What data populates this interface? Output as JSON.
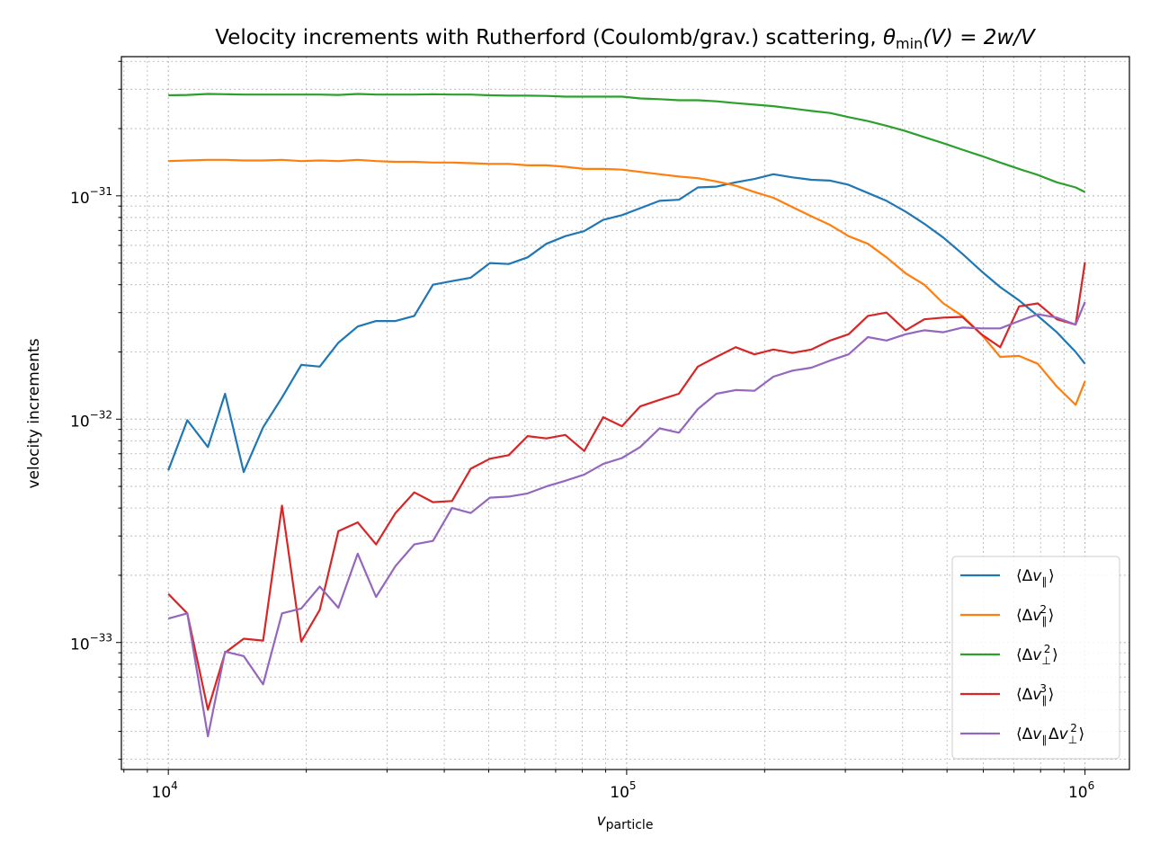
{
  "chart_data": {
    "type": "line",
    "title": "Velocity increments with Rutherford (Coulomb/grav.) scattering, θmin(V) = 2w/V",
    "title_parts": {
      "main": "Velocity increments with Rutherford (Coulomb/grav.) scattering, ",
      "theta": "θ",
      "theta_sub": "min",
      "rest": "(V) = 2w/V"
    },
    "xlabel": "v",
    "xlabel_sub": "particle",
    "ylabel": "velocity increments",
    "x_scale": "log",
    "y_scale": "log",
    "xlim": [
      7900,
      1250000
    ],
    "ylim": [
      2.7e-34,
      4.2e-31
    ],
    "grid": true,
    "legend_position": "lower-right",
    "x_ticks": [
      {
        "value": 10000,
        "base": "10",
        "exp": "4"
      },
      {
        "value": 100000,
        "base": "10",
        "exp": "5"
      },
      {
        "value": 1000000,
        "base": "10",
        "exp": "6"
      }
    ],
    "y_ticks": [
      {
        "value": 1e-33,
        "base": "10",
        "exp": "−33"
      },
      {
        "value": 1e-32,
        "base": "10",
        "exp": "−32"
      },
      {
        "value": 1e-31,
        "base": "10",
        "exp": "−31"
      }
    ],
    "x": [
      10000,
      11000,
      12200,
      13300,
      14600,
      16100,
      17700,
      19500,
      21400,
      23500,
      25900,
      28400,
      31300,
      34400,
      37800,
      41600,
      45700,
      50300,
      55300,
      60800,
      66800,
      73500,
      80800,
      88900,
      97700,
      107000,
      118000,
      130000,
      143000,
      157000,
      173000,
      190000,
      209000,
      230000,
      253000,
      278000,
      305000,
      336000,
      369000,
      406000,
      446000,
      491000,
      540000,
      594000,
      653000,
      718000,
      789000,
      868000,
      954000,
      1000000
    ],
    "series": [
      {
        "name": "⟨Δv∥⟩",
        "color": "#1f77b4",
        "values": [
          5.9e-33,
          9.9e-33,
          7.5e-33,
          1.3e-32,
          5.8e-33,
          9.2e-33,
          1.25e-32,
          1.75e-32,
          1.72e-32,
          2.2e-32,
          2.6e-32,
          2.75e-32,
          2.75e-32,
          2.9e-32,
          4e-32,
          4.15e-32,
          4.3e-32,
          5e-32,
          4.95e-32,
          5.3e-32,
          6.1e-32,
          6.6e-32,
          6.95e-32,
          7.8e-32,
          8.2e-32,
          8.8e-32,
          9.5e-32,
          9.6e-32,
          1.09e-31,
          1.1e-31,
          1.15e-31,
          1.19e-31,
          1.25e-31,
          1.21e-31,
          1.18e-31,
          1.17e-31,
          1.12e-31,
          1.03e-31,
          9.5e-32,
          8.5e-32,
          7.5e-32,
          6.5e-32,
          5.5e-32,
          4.6e-32,
          3.9e-32,
          3.4e-32,
          2.9e-32,
          2.45e-32,
          2e-32,
          1.77e-32
        ]
      },
      {
        "name": "⟨Δv∥²⟩",
        "color": "#ff7f0e",
        "values": [
          1.43e-31,
          1.44e-31,
          1.45e-31,
          1.45e-31,
          1.44e-31,
          1.44e-31,
          1.45e-31,
          1.43e-31,
          1.44e-31,
          1.43e-31,
          1.45e-31,
          1.43e-31,
          1.42e-31,
          1.42e-31,
          1.41e-31,
          1.41e-31,
          1.4e-31,
          1.39e-31,
          1.39e-31,
          1.37e-31,
          1.37e-31,
          1.35e-31,
          1.32e-31,
          1.32e-31,
          1.31e-31,
          1.28e-31,
          1.25e-31,
          1.22e-31,
          1.2e-31,
          1.16e-31,
          1.11e-31,
          1.04e-31,
          9.8e-32,
          8.9e-32,
          8.1e-32,
          7.4e-32,
          6.6e-32,
          6.1e-32,
          5.3e-32,
          4.5e-32,
          4e-32,
          3.3e-32,
          2.9e-32,
          2.4e-32,
          1.9e-32,
          1.92e-32,
          1.77e-32,
          1.4e-32,
          1.16e-32,
          1.48e-32
        ]
      },
      {
        "name": "⟨Δv⊥²⟩",
        "color": "#2ca02c",
        "values": [
          2.82e-31,
          2.83e-31,
          2.86e-31,
          2.85e-31,
          2.84e-31,
          2.84e-31,
          2.84e-31,
          2.84e-31,
          2.84e-31,
          2.83e-31,
          2.86e-31,
          2.84e-31,
          2.84e-31,
          2.84e-31,
          2.85e-31,
          2.84e-31,
          2.84e-31,
          2.82e-31,
          2.81e-31,
          2.81e-31,
          2.8e-31,
          2.78e-31,
          2.78e-31,
          2.78e-31,
          2.78e-31,
          2.73e-31,
          2.71e-31,
          2.68e-31,
          2.68e-31,
          2.65e-31,
          2.6e-31,
          2.56e-31,
          2.52e-31,
          2.46e-31,
          2.4e-31,
          2.35e-31,
          2.25e-31,
          2.16e-31,
          2.06e-31,
          1.95e-31,
          1.83e-31,
          1.72e-31,
          1.61e-31,
          1.51e-31,
          1.41e-31,
          1.32e-31,
          1.24e-31,
          1.15e-31,
          1.09e-31,
          1.04e-31
        ]
      },
      {
        "name": "⟨Δv∥³⟩",
        "color": "#d62728",
        "values": [
          1.65e-33,
          1.35e-33,
          5e-34,
          9e-34,
          1.04e-33,
          1.02e-33,
          4.1e-33,
          1.01e-33,
          1.4e-33,
          3.15e-33,
          3.45e-33,
          2.75e-33,
          3.8e-33,
          4.7e-33,
          4.25e-33,
          4.3e-33,
          6e-33,
          6.65e-33,
          6.9e-33,
          8.4e-33,
          8.2e-33,
          8.5e-33,
          7.2e-33,
          1.02e-32,
          9.3e-33,
          1.14e-32,
          1.22e-32,
          1.3e-32,
          1.72e-32,
          1.9e-32,
          2.1e-32,
          1.95e-32,
          2.05e-32,
          1.98e-32,
          2.05e-32,
          2.25e-32,
          2.4e-32,
          2.9e-32,
          3e-32,
          2.5e-32,
          2.8e-32,
          2.85e-32,
          2.87e-32,
          2.4e-32,
          2.1e-32,
          3.2e-32,
          3.3e-32,
          2.8e-32,
          2.65e-32,
          5.05e-32
        ]
      },
      {
        "name": "⟨Δv∥Δv⊥²⟩",
        "color": "#9467bd",
        "values": [
          1.28e-33,
          1.35e-33,
          3.8e-34,
          9.1e-34,
          8.7e-34,
          6.5e-34,
          1.35e-33,
          1.42e-33,
          1.78e-33,
          1.43e-33,
          2.5e-33,
          1.6e-33,
          2.2e-33,
          2.75e-33,
          2.85e-33,
          4e-33,
          3.8e-33,
          4.45e-33,
          4.5e-33,
          4.65e-33,
          5e-33,
          5.3e-33,
          5.65e-33,
          6.3e-33,
          6.7e-33,
          7.5e-33,
          9.1e-33,
          8.7e-33,
          1.11e-32,
          1.3e-32,
          1.35e-32,
          1.34e-32,
          1.55e-32,
          1.65e-32,
          1.7e-32,
          1.83e-32,
          1.95e-32,
          2.33e-32,
          2.25e-32,
          2.4e-32,
          2.5e-32,
          2.45e-32,
          2.57e-32,
          2.55e-32,
          2.55e-32,
          2.75e-32,
          2.95e-32,
          2.85e-32,
          2.65e-32,
          3.35e-32
        ]
      }
    ],
    "legend_labels": [
      {
        "pre": "⟨Δ",
        "v": "v",
        "sub": "∥",
        "sup": "",
        "post": "⟩"
      },
      {
        "pre": "⟨Δ",
        "v": "v",
        "sub": "∥",
        "sup": "2",
        "post": "⟩"
      },
      {
        "pre": "⟨Δ",
        "v": "v",
        "sub": "⊥",
        "sup": "2",
        "post": "⟩"
      },
      {
        "pre": "⟨Δ",
        "v": "v",
        "sub": "∥",
        "sup": "3",
        "post": "⟩"
      },
      {
        "pre": "⟨Δ",
        "v": "v",
        "sub": "∥",
        "sup": "",
        "mid": "Δ",
        "v2": "v",
        "sub2": "⊥",
        "sup2": "2",
        "post": "⟩"
      }
    ]
  }
}
